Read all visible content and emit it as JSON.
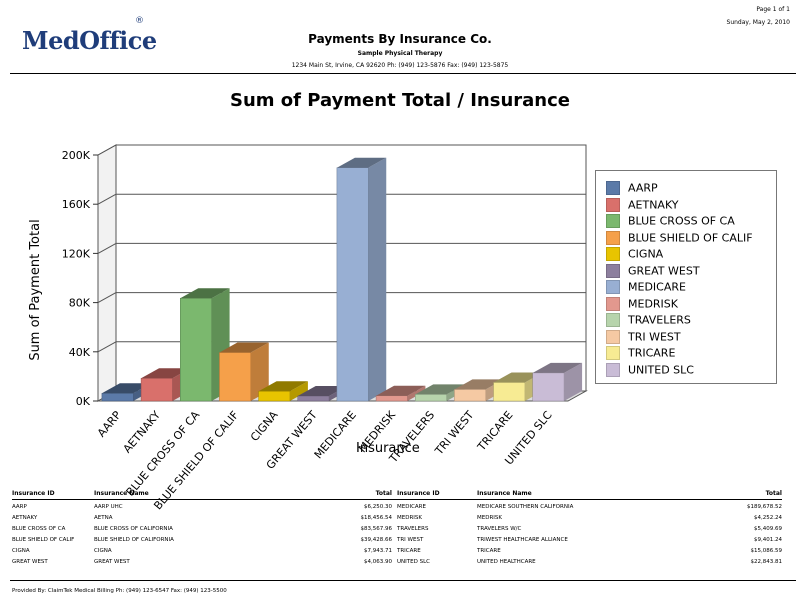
{
  "header": {
    "logo_text": "MedOffice",
    "logo_reg": "®",
    "page_info": "Page 1 of 1",
    "date": "Sunday, May 2, 2010",
    "report_title": "Payments By Insurance Co.",
    "practice_name": "Sample Physical Therapy",
    "address_line": "1234 Main St, Irvine, CA 92620 Ph: (949) 123-5876 Fax: (949) 123-5875"
  },
  "chart_data": {
    "type": "bar",
    "title": "Sum of Payment Total / Insurance",
    "xlabel": "Insurance",
    "ylabel": "Sum of Payment Total",
    "ylim": [
      0,
      200000
    ],
    "yticks": [
      "0K",
      "40K",
      "80K",
      "120K",
      "160K",
      "200K"
    ],
    "grid": true,
    "legend_position": "right",
    "categories": [
      "AARP",
      "AETNAKY",
      "BLUE CROSS OF CA",
      "BLUE SHIELD OF CALIF",
      "CIGNA",
      "GREAT WEST",
      "MEDICARE",
      "MEDRISK",
      "TRAVELERS",
      "TRI WEST",
      "TRICARE",
      "UNITED SLC"
    ],
    "values": [
      6250.3,
      18456.54,
      83567.96,
      39428.66,
      7943.71,
      4063.9,
      189678.52,
      4252.24,
      5409.69,
      9401.24,
      15086.59,
      22843.81
    ],
    "colors": [
      "#5b7aa8",
      "#d9706b",
      "#7bb86e",
      "#f5a04a",
      "#e8c400",
      "#8d7f9e",
      "#98afd3",
      "#e2988e",
      "#b7d4ac",
      "#f5c9a3",
      "#f7eb93",
      "#c9bcd6"
    ]
  },
  "table": {
    "headers": [
      "Insurance ID",
      "Insurance Name",
      "Total",
      "Insurance ID",
      "Insurance Name",
      "Total"
    ],
    "rows": [
      [
        "AARP",
        "AARP UHC",
        "$6,250.30",
        "MEDICARE",
        "MEDICARE SOUTHERN CALIFORNIA",
        "$189,678.52"
      ],
      [
        "AETNAKY",
        "AETNA",
        "$18,456.54",
        "MEDRISK",
        "MEDRISK",
        "$4,252.24"
      ],
      [
        "BLUE CROSS OF CA",
        "BLUE CROSS OF CALIFORNIA",
        "$83,567.96",
        "TRAVELERS",
        "TRAVELERS W/C",
        "$5,409.69"
      ],
      [
        "BLUE SHIELD OF CALIF",
        "BLUE SHIELD OF CALIFORNIA",
        "$39,428.66",
        "TRI WEST",
        "TRIWEST HEALTHCARE ALLIANCE",
        "$9,401.24"
      ],
      [
        "CIGNA",
        "CIGNA",
        "$7,943.71",
        "TRICARE",
        "TRICARE",
        "$15,086.59"
      ],
      [
        "GREAT WEST",
        "GREAT WEST",
        "$4,063.90",
        "UNITED SLC",
        "UNITED HEALTHCARE",
        "$22,843.81"
      ]
    ]
  },
  "footer": {
    "text": "Provided By: ClaimTek Medical Billing Ph: (949) 123-6547 Fax: (949) 123-5500"
  }
}
